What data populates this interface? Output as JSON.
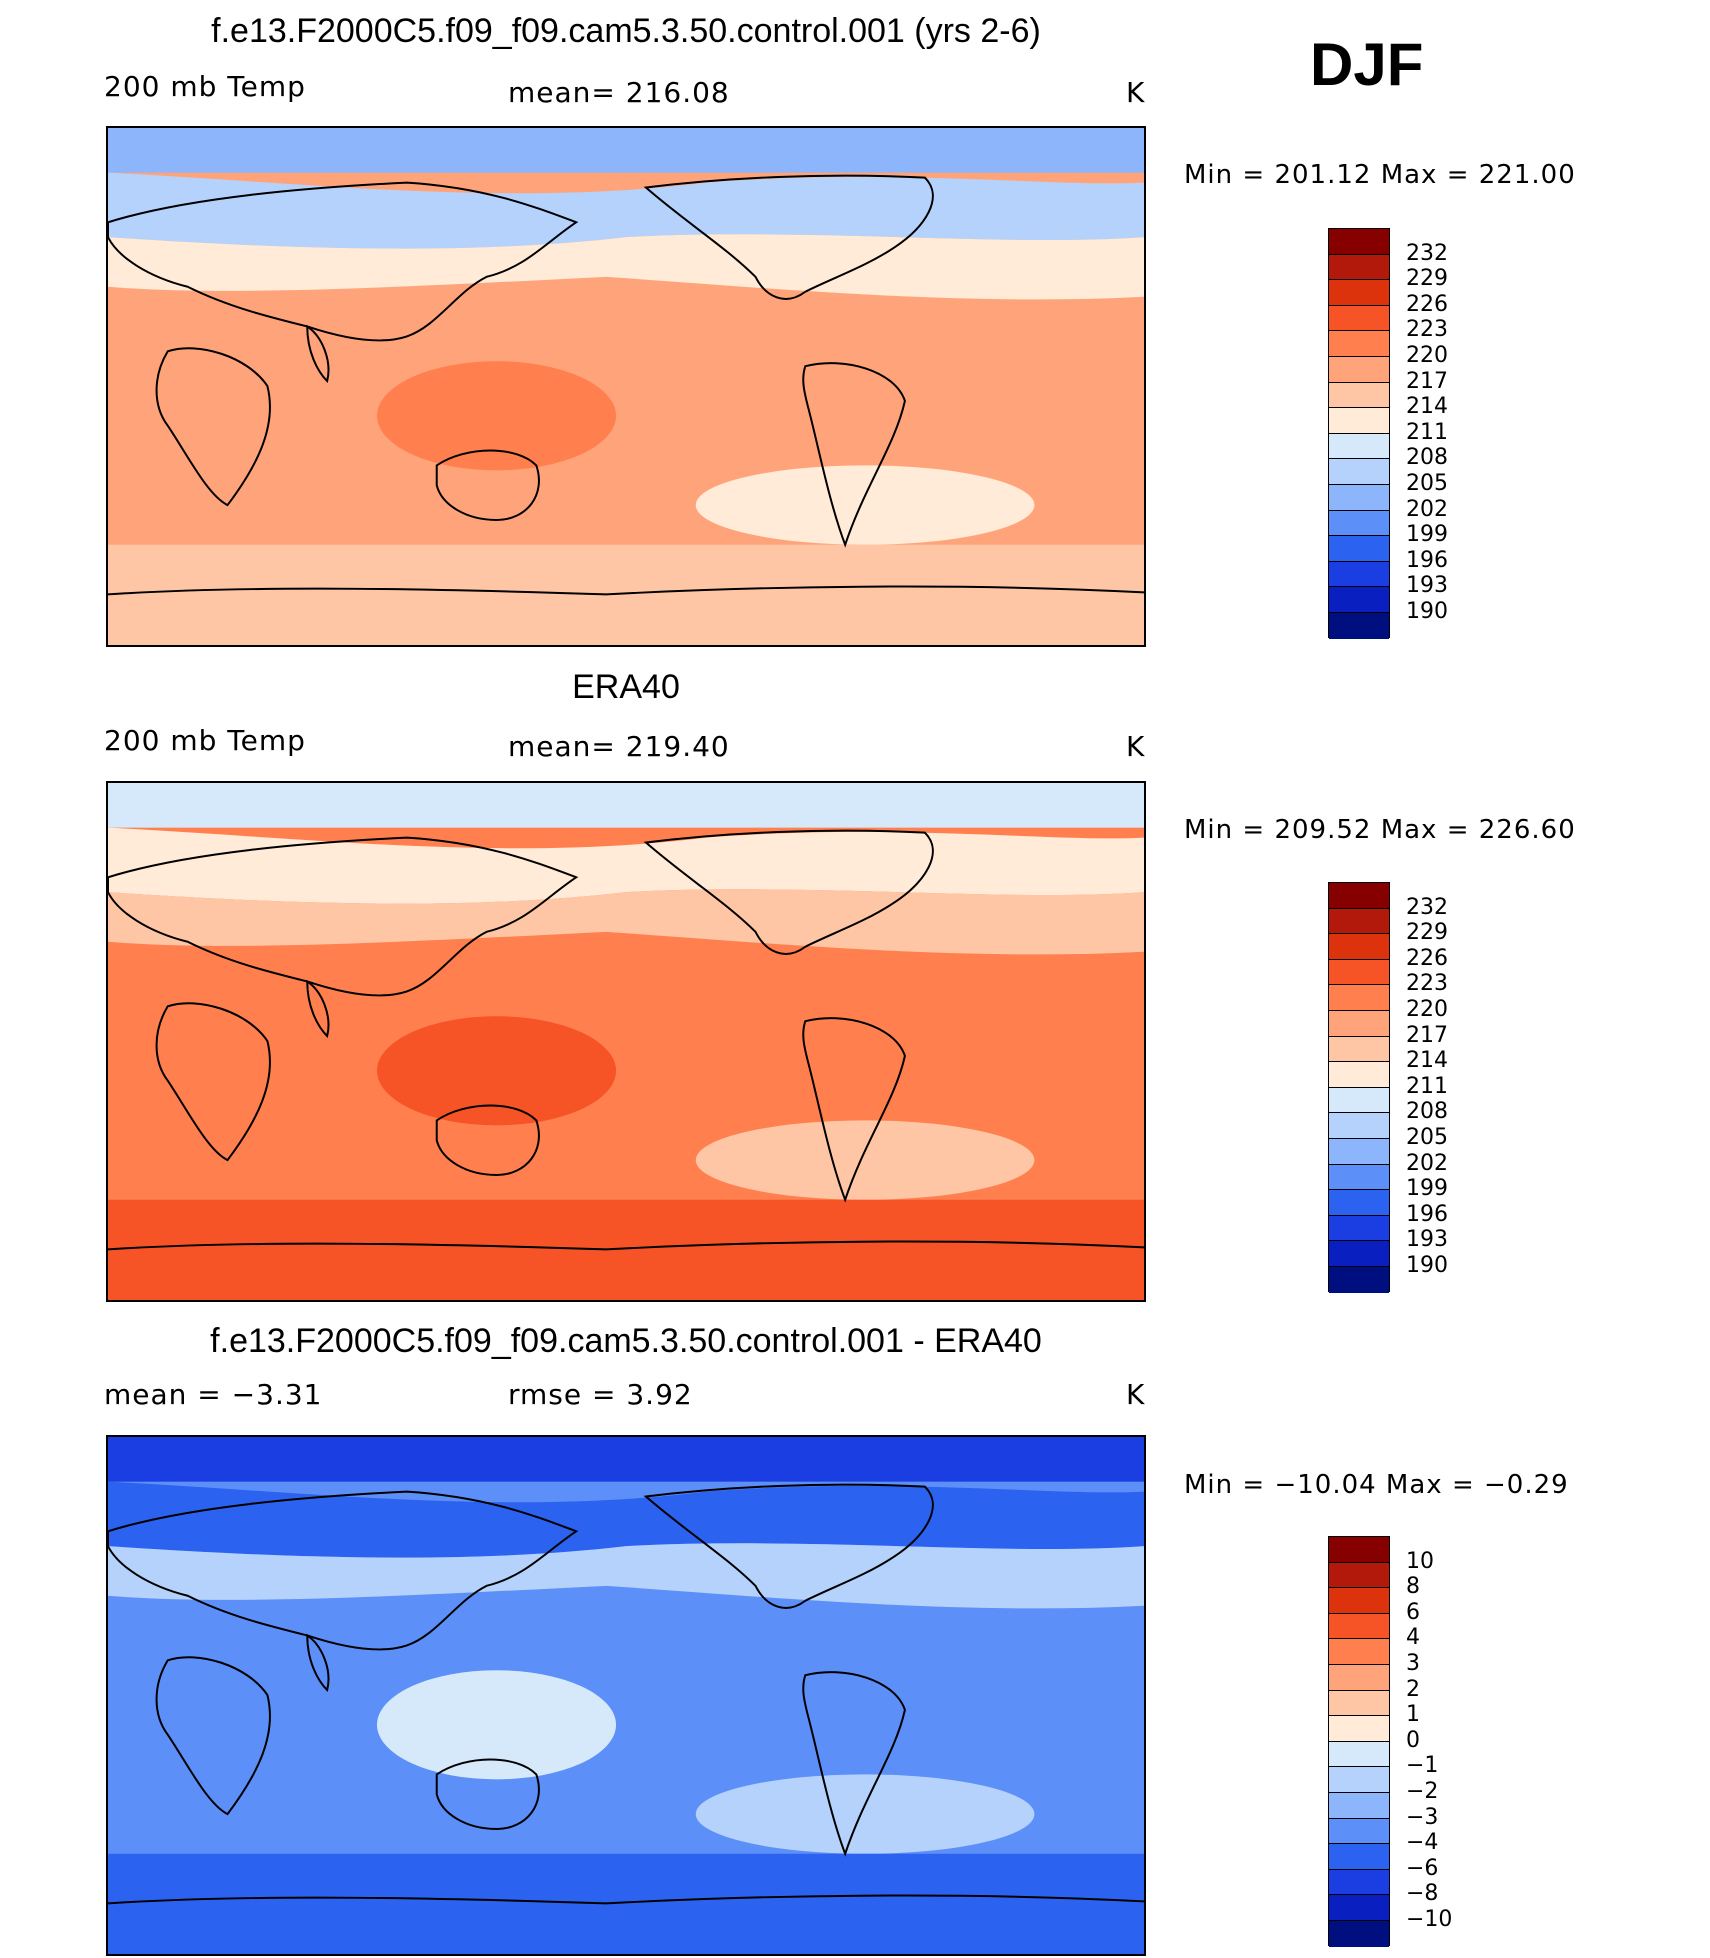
{
  "season": "DJF",
  "panels": [
    {
      "title": "f.e13.F2000C5.f09_f09.cam5.3.50.control.001 (yrs 2-6)",
      "left_label": "200 mb Temp",
      "center_label": "mean= 216.08",
      "right_label": "K",
      "minmax": "Min  =  201.12  Max  =  221.00",
      "colorbar": {
        "colors": [
          "#870000",
          "#b3190a",
          "#dd330c",
          "#f65326",
          "#ff7f4f",
          "#ffa47a",
          "#ffc6a6",
          "#ffebd7",
          "#d6e9fb",
          "#b4d2fb",
          "#8db5fc",
          "#5d8ff8",
          "#2c62f0",
          "#1a3ee1",
          "#0a1fbf",
          "#000f80"
        ],
        "ticks": [
          "232",
          "229",
          "226",
          "223",
          "220",
          "217",
          "214",
          "211",
          "208",
          "205",
          "202",
          "199",
          "196",
          "193",
          "190"
        ]
      },
      "palette": {
        "bg": "#ffa47a",
        "polar_n": "#8db5fc",
        "band_n": "#b4d2fb",
        "band_light": "#ffebd7",
        "warm_patch": "#ff7f4f",
        "south": "#ffc6a6"
      }
    },
    {
      "title": "ERA40",
      "left_label": "200 mb Temp",
      "center_label": "mean= 219.40",
      "right_label": "K",
      "minmax": "Min  =  209.52  Max  =  226.60",
      "colorbar": {
        "colors": [
          "#870000",
          "#b3190a",
          "#dd330c",
          "#f65326",
          "#ff7f4f",
          "#ffa47a",
          "#ffc6a6",
          "#ffebd7",
          "#d6e9fb",
          "#b4d2fb",
          "#8db5fc",
          "#5d8ff8",
          "#2c62f0",
          "#1a3ee1",
          "#0a1fbf",
          "#000f80"
        ],
        "ticks": [
          "232",
          "229",
          "226",
          "223",
          "220",
          "217",
          "214",
          "211",
          "208",
          "205",
          "202",
          "199",
          "196",
          "193",
          "190"
        ]
      },
      "palette": {
        "bg": "#ff7f4f",
        "polar_n": "#d6e9fb",
        "band_n": "#ffebd7",
        "band_light": "#ffc6a6",
        "warm_patch": "#f65326",
        "south": "#f65326"
      }
    },
    {
      "title": "f.e13.F2000C5.f09_f09.cam5.3.50.control.001 - ERA40",
      "left_label": "mean =    −3.31",
      "center_label": "rmse =     3.92",
      "right_label": "K",
      "minmax": "Min  = −10.04  Max  =    −0.29",
      "colorbar": {
        "colors": [
          "#870000",
          "#b3190a",
          "#dd330c",
          "#f65326",
          "#ff7f4f",
          "#ffa47a",
          "#ffc6a6",
          "#ffebd7",
          "#d6e9fb",
          "#b4d2fb",
          "#8db5fc",
          "#5d8ff8",
          "#2c62f0",
          "#1a3ee1",
          "#0a1fbf",
          "#000f80"
        ],
        "ticks": [
          "10",
          "8",
          "6",
          "4",
          "3",
          "2",
          "1",
          "0",
          "−1",
          "−2",
          "−3",
          "−4",
          "−6",
          "−8",
          "−10"
        ]
      },
      "palette": {
        "bg": "#5d8ff8",
        "polar_n": "#1a3ee1",
        "band_n": "#2c62f0",
        "band_light": "#b4d2fb",
        "warm_patch": "#d6e9fb",
        "south": "#2c62f0"
      }
    }
  ]
}
